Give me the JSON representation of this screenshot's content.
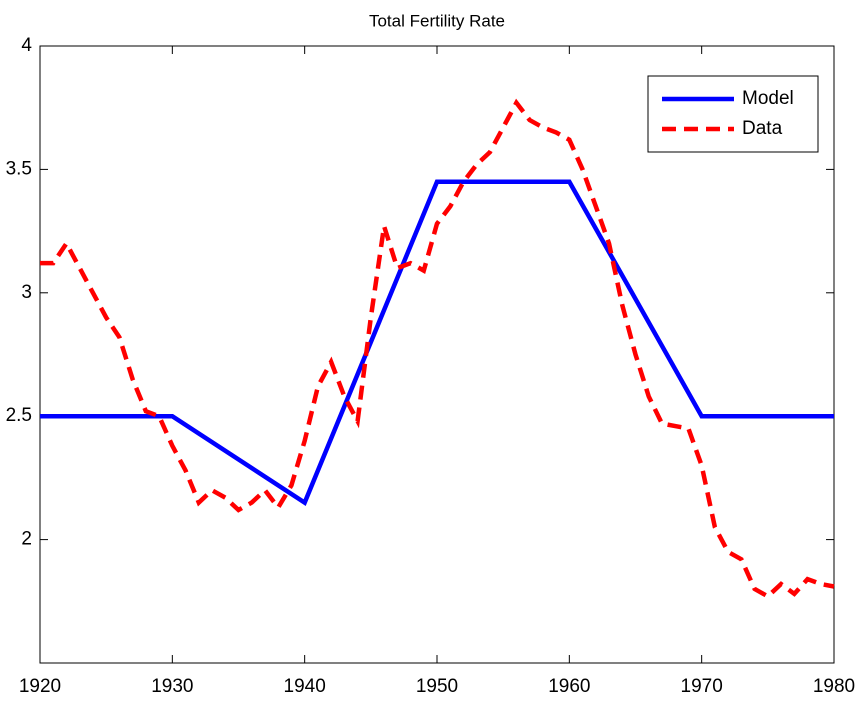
{
  "chart_data": {
    "type": "line",
    "title": "Total Fertility Rate",
    "series": [
      {
        "name": "Model",
        "color": "#0000ff",
        "dash": "solid",
        "x": [
          1920,
          1930,
          1940,
          1950,
          1960,
          1970,
          1980
        ],
        "values": [
          2.5,
          2.5,
          2.15,
          3.45,
          3.45,
          2.5,
          2.5
        ]
      },
      {
        "name": "Data",
        "color": "#ff0000",
        "dash": "dashed",
        "x": [
          1920,
          1921,
          1922,
          1923,
          1924,
          1925,
          1926,
          1927,
          1928,
          1929,
          1930,
          1931,
          1932,
          1933,
          1934,
          1935,
          1936,
          1937,
          1938,
          1939,
          1940,
          1941,
          1942,
          1943,
          1944,
          1945,
          1946,
          1947,
          1948,
          1949,
          1950,
          1951,
          1952,
          1953,
          1954,
          1955,
          1956,
          1957,
          1958,
          1959,
          1960,
          1961,
          1962,
          1963,
          1964,
          1965,
          1966,
          1967,
          1968,
          1969,
          1970,
          1971,
          1972,
          1973,
          1974,
          1975,
          1976,
          1977,
          1978,
          1979,
          1980
        ],
        "values": [
          3.12,
          3.12,
          3.2,
          3.1,
          3.0,
          2.9,
          2.82,
          2.65,
          2.52,
          2.5,
          2.38,
          2.28,
          2.15,
          2.2,
          2.17,
          2.12,
          2.15,
          2.2,
          2.13,
          2.22,
          2.4,
          2.62,
          2.72,
          2.58,
          2.48,
          2.9,
          3.27,
          3.1,
          3.12,
          3.09,
          3.28,
          3.35,
          3.45,
          3.52,
          3.57,
          3.67,
          3.77,
          3.7,
          3.67,
          3.65,
          3.62,
          3.5,
          3.35,
          3.2,
          2.95,
          2.75,
          2.58,
          2.47,
          2.46,
          2.45,
          2.3,
          2.05,
          1.95,
          1.92,
          1.8,
          1.77,
          1.82,
          1.78,
          1.84,
          1.82,
          1.81
        ]
      }
    ],
    "xlim": [
      1920,
      1980
    ],
    "xticks": [
      1920,
      1930,
      1940,
      1950,
      1960,
      1970,
      1980
    ],
    "ylim": [
      1.5,
      4
    ],
    "yticks": [
      2,
      2.5,
      3,
      3.5,
      4
    ],
    "grid": false,
    "legend": "northeast"
  }
}
